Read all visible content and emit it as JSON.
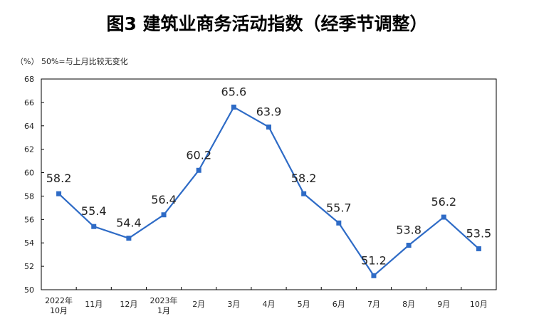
{
  "title": "图3  建筑业商务活动指数（经季节调整）",
  "unit_note": "（%）  50%=与上月比较无变化",
  "chart_data": {
    "type": "line",
    "title": "图3  建筑业商务活动指数（经季节调整）",
    "xlabel": "",
    "ylabel": "（%）",
    "categories": [
      [
        "2022年",
        "10月"
      ],
      [
        "11月"
      ],
      [
        "12月"
      ],
      [
        "2023年",
        "1月"
      ],
      [
        "2月"
      ],
      [
        "3月"
      ],
      [
        "4月"
      ],
      [
        "5月"
      ],
      [
        "6月"
      ],
      [
        "7月"
      ],
      [
        "8月"
      ],
      [
        "9月"
      ],
      [
        "10月"
      ]
    ],
    "values": [
      58.2,
      55.4,
      54.4,
      56.4,
      60.2,
      65.6,
      63.9,
      58.2,
      55.7,
      51.2,
      53.8,
      56.2,
      53.5
    ],
    "ylim": [
      50,
      68
    ],
    "yticks": [
      50,
      52,
      54,
      56,
      58,
      60,
      62,
      64,
      66,
      68
    ],
    "grid": false,
    "legend": "none",
    "color": "#2E6BC6"
  }
}
